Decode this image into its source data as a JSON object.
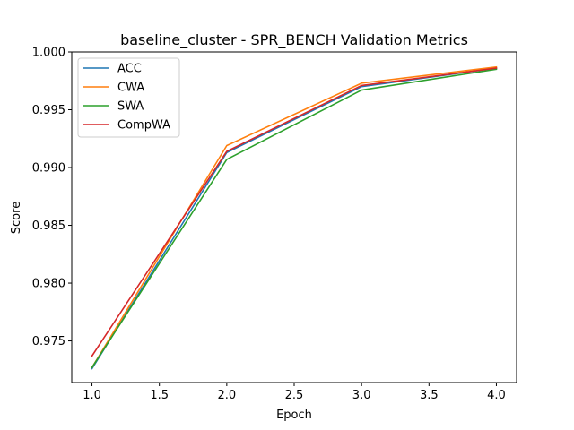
{
  "chart_data": {
    "type": "line",
    "title": "baseline_cluster - SPR_BENCH Validation Metrics",
    "xlabel": "Epoch",
    "ylabel": "Score",
    "xlim": [
      0.85,
      4.15
    ],
    "ylim": [
      0.9714,
      1.0
    ],
    "xticks": [
      "1.0",
      "1.5",
      "2.0",
      "2.5",
      "3.0",
      "3.5",
      "4.0"
    ],
    "xtick_values": [
      1.0,
      1.5,
      2.0,
      2.5,
      3.0,
      3.5,
      4.0
    ],
    "yticks": [
      "0.975",
      "0.980",
      "0.985",
      "0.990",
      "0.995",
      "1.000"
    ],
    "ytick_values": [
      0.975,
      0.98,
      0.985,
      0.99,
      0.995,
      1.0
    ],
    "grid": false,
    "legend_position": "upper-left",
    "x": [
      1,
      2,
      3,
      4
    ],
    "series": [
      {
        "name": "ACC",
        "color": "#1f77b4",
        "values": [
          0.9726,
          0.9913,
          0.997,
          0.9986
        ]
      },
      {
        "name": "CWA",
        "color": "#ff7f0e",
        "values": [
          0.9727,
          0.9919,
          0.9973,
          0.9987
        ]
      },
      {
        "name": "SWA",
        "color": "#2ca02c",
        "values": [
          0.9727,
          0.9907,
          0.9967,
          0.9985
        ]
      },
      {
        "name": "CompWA",
        "color": "#d62728",
        "values": [
          0.9737,
          0.9914,
          0.9971,
          0.9986
        ]
      }
    ]
  }
}
